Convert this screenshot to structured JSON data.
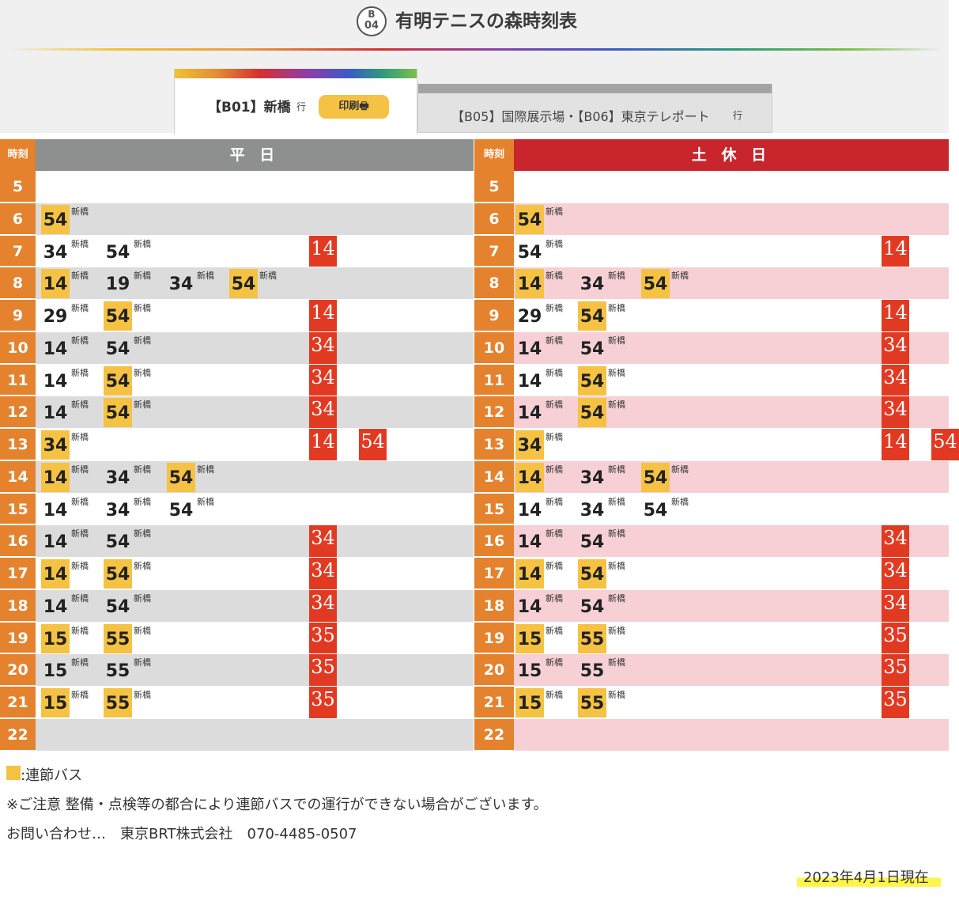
{
  "header": {
    "station_line": "B",
    "station_number": "04",
    "title": "有明テニスの森時刻表"
  },
  "tabs": {
    "active": {
      "label": "【B01】新橋",
      "suffix": "行",
      "print_label": "印刷🖶"
    },
    "inactive": {
      "label": "【B05】国際展示場・【B06】東京テレポート",
      "suffix": "行"
    }
  },
  "timetable": {
    "hour_header": "時刻",
    "weekday_label": "平 日",
    "holiday_label": "土 休 日",
    "colors": {
      "hour": "#e4822e",
      "weekday_header": "#8e8f8f",
      "holiday_header": "#c9252c",
      "weekday_band": "#dcdcdc",
      "holiday_band": "#f6d0d4",
      "articulated": "#f5c243",
      "red_minute": "#e23a22"
    },
    "weekday": [
      {
        "hour": "5",
        "buses": [],
        "red": []
      },
      {
        "hour": "6",
        "buses": [
          {
            "m": "54",
            "dest": "新橋",
            "artic": true
          }
        ],
        "red": []
      },
      {
        "hour": "7",
        "buses": [
          {
            "m": "34",
            "dest": "新橋",
            "artic": false
          },
          {
            "m": "54",
            "dest": "新橋",
            "artic": false
          }
        ],
        "red": [
          "14"
        ]
      },
      {
        "hour": "8",
        "buses": [
          {
            "m": "14",
            "dest": "新橋",
            "artic": true
          },
          {
            "m": "19",
            "dest": "新橋",
            "artic": false
          },
          {
            "m": "34",
            "dest": "新橋",
            "artic": false
          },
          {
            "m": "54",
            "dest": "新橋",
            "artic": true
          }
        ],
        "red": []
      },
      {
        "hour": "9",
        "buses": [
          {
            "m": "29",
            "dest": "新橋",
            "artic": false
          },
          {
            "m": "54",
            "dest": "新橋",
            "artic": true
          }
        ],
        "red": [
          "14"
        ]
      },
      {
        "hour": "10",
        "buses": [
          {
            "m": "14",
            "dest": "新橋",
            "artic": false
          },
          {
            "m": "54",
            "dest": "新橋",
            "artic": false
          }
        ],
        "red": [
          "34"
        ]
      },
      {
        "hour": "11",
        "buses": [
          {
            "m": "14",
            "dest": "新橋",
            "artic": false
          },
          {
            "m": "54",
            "dest": "新橋",
            "artic": true
          }
        ],
        "red": [
          "34"
        ]
      },
      {
        "hour": "12",
        "buses": [
          {
            "m": "14",
            "dest": "新橋",
            "artic": false
          },
          {
            "m": "54",
            "dest": "新橋",
            "artic": true
          }
        ],
        "red": [
          "34"
        ]
      },
      {
        "hour": "13",
        "buses": [
          {
            "m": "34",
            "dest": "新橋",
            "artic": true
          }
        ],
        "red": [
          "14",
          "54"
        ]
      },
      {
        "hour": "14",
        "buses": [
          {
            "m": "14",
            "dest": "新橋",
            "artic": true
          },
          {
            "m": "34",
            "dest": "新橋",
            "artic": false
          },
          {
            "m": "54",
            "dest": "新橋",
            "artic": true
          }
        ],
        "red": []
      },
      {
        "hour": "15",
        "buses": [
          {
            "m": "14",
            "dest": "新橋",
            "artic": false
          },
          {
            "m": "34",
            "dest": "新橋",
            "artic": false
          },
          {
            "m": "54",
            "dest": "新橋",
            "artic": false
          }
        ],
        "red": []
      },
      {
        "hour": "16",
        "buses": [
          {
            "m": "14",
            "dest": "新橋",
            "artic": false
          },
          {
            "m": "54",
            "dest": "新橋",
            "artic": false
          }
        ],
        "red": [
          "34"
        ]
      },
      {
        "hour": "17",
        "buses": [
          {
            "m": "14",
            "dest": "新橋",
            "artic": true
          },
          {
            "m": "54",
            "dest": "新橋",
            "artic": true
          }
        ],
        "red": [
          "34"
        ]
      },
      {
        "hour": "18",
        "buses": [
          {
            "m": "14",
            "dest": "新橋",
            "artic": false
          },
          {
            "m": "54",
            "dest": "新橋",
            "artic": false
          }
        ],
        "red": [
          "34"
        ]
      },
      {
        "hour": "19",
        "buses": [
          {
            "m": "15",
            "dest": "新橋",
            "artic": true
          },
          {
            "m": "55",
            "dest": "新橋",
            "artic": true
          }
        ],
        "red": [
          "35"
        ]
      },
      {
        "hour": "20",
        "buses": [
          {
            "m": "15",
            "dest": "新橋",
            "artic": false
          },
          {
            "m": "55",
            "dest": "新橋",
            "artic": false
          }
        ],
        "red": [
          "35"
        ]
      },
      {
        "hour": "21",
        "buses": [
          {
            "m": "15",
            "dest": "新橋",
            "artic": true
          },
          {
            "m": "55",
            "dest": "新橋",
            "artic": true
          }
        ],
        "red": [
          "35"
        ]
      },
      {
        "hour": "22",
        "buses": [],
        "red": []
      }
    ],
    "holiday": [
      {
        "hour": "5",
        "buses": [],
        "red": []
      },
      {
        "hour": "6",
        "buses": [
          {
            "m": "54",
            "dest": "新橋",
            "artic": true
          }
        ],
        "red": []
      },
      {
        "hour": "7",
        "buses": [
          {
            "m": "54",
            "dest": "新橋",
            "artic": false
          }
        ],
        "red": [
          "14"
        ]
      },
      {
        "hour": "8",
        "buses": [
          {
            "m": "14",
            "dest": "新橋",
            "artic": true
          },
          {
            "m": "34",
            "dest": "新橋",
            "artic": false
          },
          {
            "m": "54",
            "dest": "新橋",
            "artic": true
          }
        ],
        "red": []
      },
      {
        "hour": "9",
        "buses": [
          {
            "m": "29",
            "dest": "新橋",
            "artic": false
          },
          {
            "m": "54",
            "dest": "新橋",
            "artic": true
          }
        ],
        "red": [
          "14"
        ]
      },
      {
        "hour": "10",
        "buses": [
          {
            "m": "14",
            "dest": "新橋",
            "artic": false
          },
          {
            "m": "54",
            "dest": "新橋",
            "artic": false
          }
        ],
        "red": [
          "34"
        ]
      },
      {
        "hour": "11",
        "buses": [
          {
            "m": "14",
            "dest": "新橋",
            "artic": false
          },
          {
            "m": "54",
            "dest": "新橋",
            "artic": true
          }
        ],
        "red": [
          "34"
        ]
      },
      {
        "hour": "12",
        "buses": [
          {
            "m": "14",
            "dest": "新橋",
            "artic": false
          },
          {
            "m": "54",
            "dest": "新橋",
            "artic": true
          }
        ],
        "red": [
          "34"
        ]
      },
      {
        "hour": "13",
        "buses": [
          {
            "m": "34",
            "dest": "新橋",
            "artic": true
          }
        ],
        "red": [
          "14",
          "54"
        ]
      },
      {
        "hour": "14",
        "buses": [
          {
            "m": "14",
            "dest": "新橋",
            "artic": true
          },
          {
            "m": "34",
            "dest": "新橋",
            "artic": false
          },
          {
            "m": "54",
            "dest": "新橋",
            "artic": true
          }
        ],
        "red": []
      },
      {
        "hour": "15",
        "buses": [
          {
            "m": "14",
            "dest": "新橋",
            "artic": false
          },
          {
            "m": "34",
            "dest": "新橋",
            "artic": false
          },
          {
            "m": "54",
            "dest": "新橋",
            "artic": false
          }
        ],
        "red": []
      },
      {
        "hour": "16",
        "buses": [
          {
            "m": "14",
            "dest": "新橋",
            "artic": false
          },
          {
            "m": "54",
            "dest": "新橋",
            "artic": false
          }
        ],
        "red": [
          "34"
        ]
      },
      {
        "hour": "17",
        "buses": [
          {
            "m": "14",
            "dest": "新橋",
            "artic": true
          },
          {
            "m": "54",
            "dest": "新橋",
            "artic": true
          }
        ],
        "red": [
          "34"
        ]
      },
      {
        "hour": "18",
        "buses": [
          {
            "m": "14",
            "dest": "新橋",
            "artic": false
          },
          {
            "m": "54",
            "dest": "新橋",
            "artic": false
          }
        ],
        "red": [
          "34"
        ]
      },
      {
        "hour": "19",
        "buses": [
          {
            "m": "15",
            "dest": "新橋",
            "artic": true
          },
          {
            "m": "55",
            "dest": "新橋",
            "artic": true
          }
        ],
        "red": [
          "35"
        ]
      },
      {
        "hour": "20",
        "buses": [
          {
            "m": "15",
            "dest": "新橋",
            "artic": false
          },
          {
            "m": "55",
            "dest": "新橋",
            "artic": false
          }
        ],
        "red": [
          "35"
        ]
      },
      {
        "hour": "21",
        "buses": [
          {
            "m": "15",
            "dest": "新橋",
            "artic": true
          },
          {
            "m": "55",
            "dest": "新橋",
            "artic": true
          }
        ],
        "red": [
          "35"
        ]
      },
      {
        "hour": "22",
        "buses": [],
        "red": []
      }
    ]
  },
  "footer": {
    "legend": ":連節バス",
    "notice": "※ご注意 整備・点検等の都合により連節バスでの運行ができない場合がございます。",
    "contact": "お問い合わせ…　東京BRT株式会社　070-4485-0507",
    "date": "2023年4月1日現在"
  }
}
